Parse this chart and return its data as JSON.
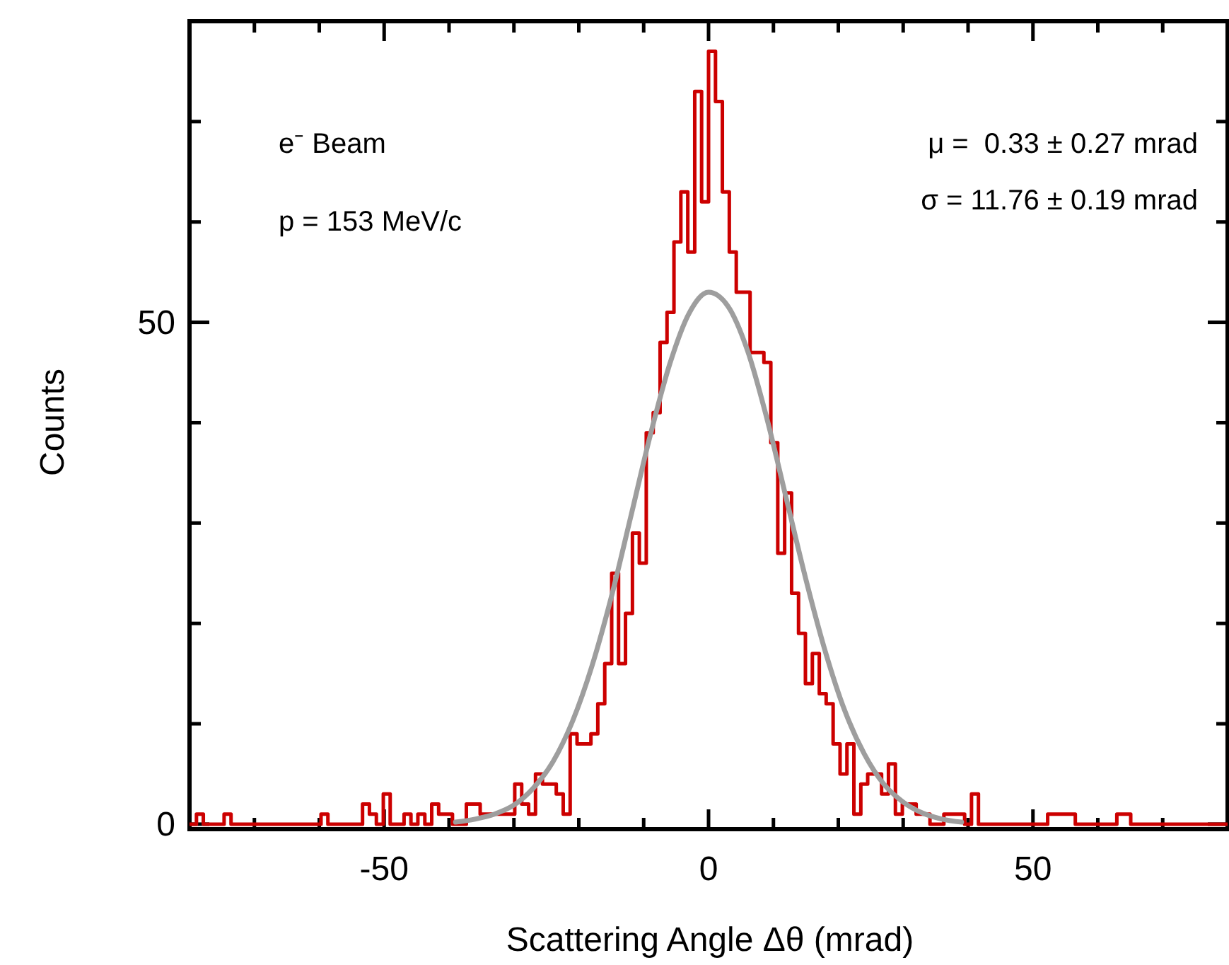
{
  "chart_data": {
    "type": "step",
    "xlabel": "Scattering Angle Δθ (mrad)",
    "ylabel": "Counts",
    "annotations": [
      "e⁻ Beam",
      "p = 153 MeV/c",
      "μ =  0.33 ± 0.27 mrad",
      "σ = 11.76 ± 0.19 mrad"
    ],
    "xlim": [
      -80,
      80
    ],
    "ylim": [
      -0.5,
      80
    ],
    "xticks": [
      {
        "value": -70,
        "label": null
      },
      {
        "value": -60,
        "label": null
      },
      -50,
      {
        "value": -40,
        "label": null
      },
      {
        "value": -30,
        "label": null
      },
      {
        "value": -20,
        "label": null
      },
      {
        "value": -10,
        "label": null
      },
      0,
      {
        "value": 10,
        "label": null
      },
      {
        "value": 20,
        "label": null
      },
      {
        "value": 30,
        "label": null
      },
      {
        "value": 40,
        "label": null
      },
      50,
      {
        "value": 60,
        "label": null
      },
      {
        "value": 70,
        "label": null
      }
    ],
    "yticks": [
      0,
      {
        "value": 10,
        "label": null
      },
      {
        "value": 20,
        "label": null
      },
      {
        "value": 30,
        "label": null
      },
      {
        "value": 40,
        "label": null
      },
      50,
      {
        "value": 60,
        "label": null
      },
      {
        "value": 70,
        "label": null
      }
    ],
    "series": [
      {
        "color": "#cc0000",
        "x": [
          -80,
          -78.93,
          -77.87,
          -76.8,
          -75.73,
          -74.67,
          -73.6,
          -72.53,
          -71.47,
          -70.4,
          -69.33,
          -68.27,
          -67.2,
          -66.13,
          -65.07,
          -64,
          -62.93,
          -61.87,
          -60.8,
          -59.73,
          -58.67,
          -57.6,
          -56.53,
          -55.47,
          -54.4,
          -53.33,
          -52.27,
          -51.2,
          -50.13,
          -49.07,
          -48,
          -46.93,
          -45.87,
          -44.8,
          -43.73,
          -42.67,
          -41.6,
          -40.53,
          -39.47,
          -38.4,
          -37.33,
          -36.27,
          -35.2,
          -34.13,
          -33.07,
          -32,
          -30.93,
          -29.87,
          -28.8,
          -27.73,
          -26.67,
          -25.6,
          -24.53,
          -23.47,
          -22.4,
          -21.33,
          -20.27,
          -19.2,
          -18.13,
          -17.07,
          -16,
          -14.93,
          -13.87,
          -12.8,
          -11.73,
          -10.67,
          -9.6,
          -8.53,
          -7.47,
          -6.4,
          -5.33,
          -4.27,
          -3.2,
          -2.13,
          -1.07,
          0,
          1.07,
          2.13,
          3.2,
          4.27,
          5.33,
          6.4,
          7.47,
          8.53,
          9.6,
          10.67,
          11.73,
          12.8,
          13.87,
          14.93,
          16,
          17.07,
          18.13,
          19.2,
          20.27,
          21.33,
          22.4,
          23.47,
          24.53,
          25.6,
          26.67,
          27.73,
          28.8,
          29.87,
          30.93,
          32,
          33.07,
          34.13,
          35.2,
          36.27,
          37.33,
          38.4,
          39.47,
          40.53,
          41.6,
          42.67,
          43.73,
          44.8,
          45.87,
          46.93,
          48,
          49.07,
          50.13,
          51.2,
          52.27,
          53.33,
          54.4,
          55.47,
          56.53,
          57.6,
          58.67,
          59.73,
          60.8,
          61.87,
          62.93,
          64,
          65.07,
          66.13,
          67.2,
          68.27,
          69.33,
          70.4,
          71.47,
          72.53,
          73.6,
          74.67,
          75.73,
          76.8,
          77.87,
          78.93,
          80
        ],
        "values": [
          0,
          1,
          0,
          0,
          0,
          1,
          0,
          0,
          0,
          0,
          0,
          0,
          0,
          0,
          0,
          0,
          0,
          0,
          0,
          1,
          0,
          0,
          0,
          0,
          0,
          2,
          1,
          0,
          3,
          0,
          0,
          1,
          0,
          1,
          0,
          2,
          1,
          1,
          0,
          0,
          2,
          2,
          1,
          1,
          1,
          1,
          1,
          4,
          2,
          1,
          5,
          4,
          4,
          3,
          1,
          9,
          8,
          8,
          9,
          12,
          16,
          25,
          16,
          21,
          29,
          26,
          39,
          41,
          48,
          51,
          58,
          63,
          57,
          73,
          62,
          77,
          72,
          63,
          57,
          53,
          53,
          47,
          47,
          46,
          38,
          27,
          33,
          23,
          19,
          14,
          17,
          13,
          12,
          8,
          5,
          8,
          1,
          4,
          5,
          5,
          3,
          6,
          1,
          2,
          2,
          1,
          1,
          0,
          0,
          1,
          1,
          1,
          0,
          3,
          0,
          0,
          0,
          0,
          0,
          0,
          0,
          0,
          0,
          0,
          1,
          1,
          1,
          1,
          0,
          0,
          0,
          0,
          0,
          0,
          1,
          1,
          0,
          0,
          0,
          0,
          0,
          0,
          0,
          0,
          0,
          0,
          0,
          0,
          0,
          0,
          0
        ]
      },
      {
        "type": "line",
        "color": "#9e9e9e",
        "x": [
          -39,
          -36,
          -33,
          -30,
          -27,
          -24,
          -21,
          -18,
          -15,
          -12,
          -9,
          -6,
          -3,
          0,
          3,
          6,
          9,
          12,
          15,
          18,
          21,
          24,
          27,
          30,
          33,
          36,
          39
        ],
        "values": [
          0.2,
          0.5,
          1,
          1.9,
          3.6,
          6.2,
          10.2,
          15.7,
          22.6,
          30.6,
          38.7,
          45.8,
          50.9,
          53,
          51.6,
          47.2,
          40.4,
          32.4,
          24.4,
          17.2,
          11.3,
          7,
          4,
          2.2,
          1.1,
          0.5,
          0.2
        ]
      }
    ]
  }
}
